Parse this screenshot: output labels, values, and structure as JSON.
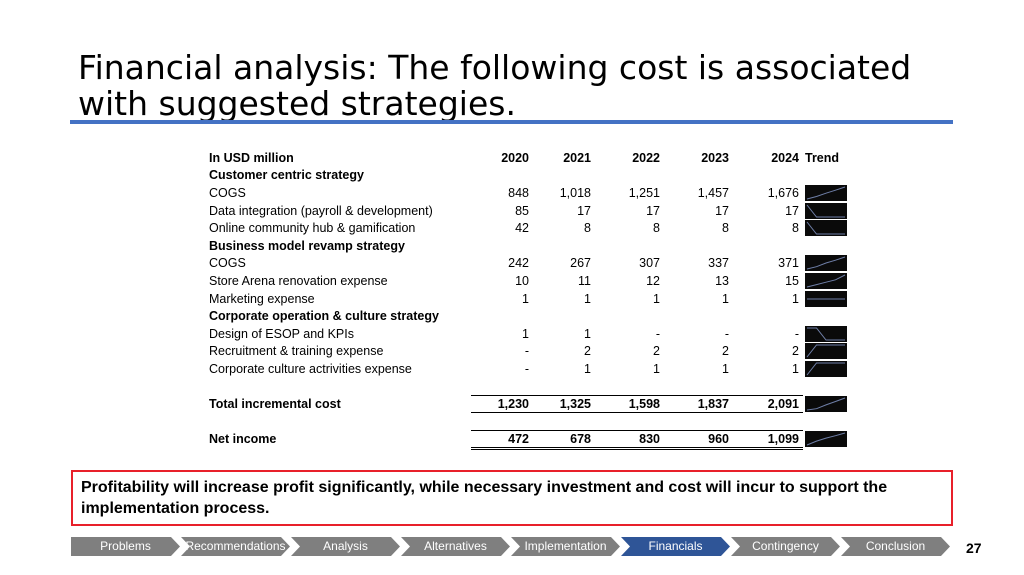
{
  "slide": {
    "title": "Financial analysis: The following cost is associated with suggested strategies.",
    "callout": "Profitability will increase profit significantly, while necessary investment and cost will incur to support the implementation process.",
    "page_number": "27",
    "colors": {
      "title_rule": "#4472c4",
      "callout_border": "#e8202a",
      "nav_inactive": "#7f7f7f",
      "nav_active": "#2f5597"
    }
  },
  "table": {
    "header": {
      "label": "In USD million",
      "years": [
        "2020",
        "2021",
        "2022",
        "2023",
        "2024"
      ],
      "trend": "Trend"
    },
    "rows": [
      {
        "type": "section",
        "label": "Customer centric strategy"
      },
      {
        "type": "item",
        "label": "COGS",
        "values": [
          "848",
          "1,018",
          "1,251",
          "1,457",
          "1,676"
        ]
      },
      {
        "type": "item",
        "label": "Data integration (payroll & development)",
        "values": [
          "85",
          "17",
          "17",
          "17",
          "17"
        ]
      },
      {
        "type": "item",
        "label": "Online community hub & gamification",
        "values": [
          "42",
          "8",
          "8",
          "8",
          "8"
        ]
      },
      {
        "type": "section",
        "label": "Business model revamp strategy"
      },
      {
        "type": "item",
        "label": "COGS",
        "values": [
          "242",
          "267",
          "307",
          "337",
          "371"
        ]
      },
      {
        "type": "item",
        "label": "Store Arena renovation expense",
        "values": [
          "10",
          "11",
          "12",
          "13",
          "15"
        ]
      },
      {
        "type": "item",
        "label": "Marketing expense",
        "values": [
          "1",
          "1",
          "1",
          "1",
          "1"
        ]
      },
      {
        "type": "section",
        "label": "Corporate operation & culture strategy"
      },
      {
        "type": "item",
        "label": "Design of ESOP and KPIs",
        "values": [
          "1",
          "1",
          "-",
          "-",
          "-"
        ]
      },
      {
        "type": "item",
        "label": "Recruitment & training expense",
        "values": [
          "-",
          "2",
          "2",
          "2",
          "2"
        ]
      },
      {
        "type": "item",
        "label": "Corporate culture actrivities expense",
        "values": [
          "-",
          "1",
          "1",
          "1",
          "1"
        ]
      },
      {
        "type": "spacer"
      },
      {
        "type": "total",
        "label": "Total incremental cost",
        "values": [
          "1,230",
          "1,325",
          "1,598",
          "1,837",
          "2,091"
        ]
      },
      {
        "type": "spacer"
      },
      {
        "type": "netinc",
        "label": "Net income",
        "values": [
          "472",
          "678",
          "830",
          "960",
          "1,099"
        ]
      }
    ]
  },
  "nav": {
    "steps": [
      "Problems",
      "Recommendations",
      "Analysis",
      "Alternatives",
      "Implementation",
      "Financials",
      "Contingency",
      "Conclusion"
    ],
    "active": "Financials"
  }
}
